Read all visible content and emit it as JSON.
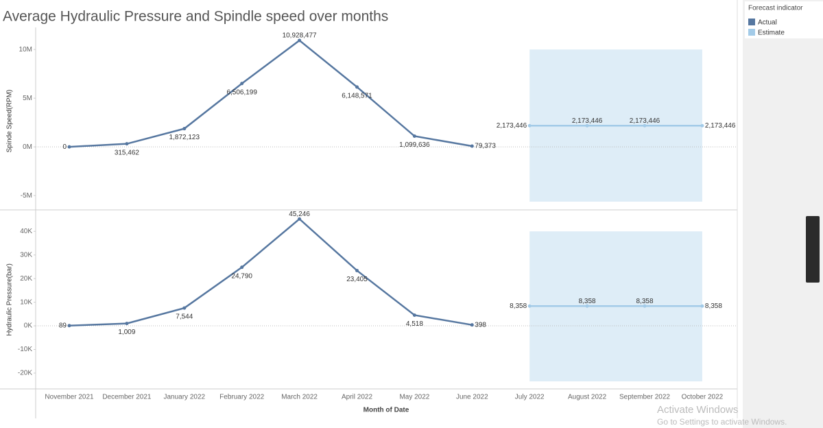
{
  "chart_data": [
    {
      "type": "line",
      "title": "Average Hydraulic Pressure and Spindle speed over months",
      "ylabel": "Spinde Speed(RPM)",
      "legend_title": "Forecast indicator",
      "ylim": [
        -6400000,
        11700000
      ],
      "yticks": [
        {
          "value": -5000000,
          "label": "-5M"
        },
        {
          "value": 0,
          "label": "0M"
        },
        {
          "value": 5000000,
          "label": "5M"
        },
        {
          "value": 10000000,
          "label": "10M"
        }
      ],
      "series": [
        {
          "name": "Actual",
          "color": "#5677a0",
          "values": [
            0,
            315462,
            1872123,
            6506199,
            10928477,
            6148571,
            1099636,
            79373,
            null,
            null,
            null,
            null
          ],
          "value_labels": [
            "0",
            "315,462",
            "1,872,123",
            "6,506,199",
            "10,928,477",
            "6,148,571",
            "1,099,636",
            "79,373",
            null,
            null,
            null,
            null
          ]
        },
        {
          "name": "Estimate",
          "color": "#a3cbe8",
          "values": [
            null,
            null,
            null,
            null,
            null,
            null,
            null,
            null,
            2173446,
            2173446,
            2173446,
            2173446
          ],
          "value_labels": [
            null,
            null,
            null,
            null,
            null,
            null,
            null,
            null,
            "2,173,446",
            "2,173,446",
            "2,173,446",
            "2,173,446"
          ]
        }
      ]
    },
    {
      "type": "line",
      "ylabel": "Hydraulic Pressure(bar)",
      "xlabel": "Month of Date",
      "categories": [
        "November 2021",
        "December 2021",
        "January 2022",
        "February 2022",
        "March 2022",
        "April 2022",
        "May 2022",
        "June 2022",
        "July 2022",
        "August 2022",
        "September 2022",
        "October 2022"
      ],
      "ylim": [
        -26700,
        48800
      ],
      "yticks": [
        {
          "value": -20000,
          "label": "-20K"
        },
        {
          "value": -10000,
          "label": "-10K"
        },
        {
          "value": 0,
          "label": "0K"
        },
        {
          "value": 10000,
          "label": "10K"
        },
        {
          "value": 20000,
          "label": "20K"
        },
        {
          "value": 30000,
          "label": "30K"
        },
        {
          "value": 40000,
          "label": "40K"
        }
      ],
      "series": [
        {
          "name": "Actual",
          "color": "#5677a0",
          "values": [
            89,
            1009,
            7544,
            24790,
            45246,
            23405,
            4518,
            398,
            null,
            null,
            null,
            null
          ],
          "value_labels": [
            "89",
            "1,009",
            "7,544",
            "24,790",
            "45,246",
            "23,405",
            "4,518",
            "398",
            null,
            null,
            null,
            null
          ]
        },
        {
          "name": "Estimate",
          "color": "#a3cbe8",
          "values": [
            null,
            null,
            null,
            null,
            null,
            null,
            null,
            null,
            8358,
            8358,
            8358,
            8358
          ],
          "value_labels": [
            null,
            null,
            null,
            null,
            null,
            null,
            null,
            null,
            "8,358",
            "8,358",
            "8,358",
            "8,358"
          ]
        }
      ]
    }
  ],
  "watermark": {
    "title": "Activate Windows",
    "subtitle": "Go to Settings to activate Windows."
  }
}
